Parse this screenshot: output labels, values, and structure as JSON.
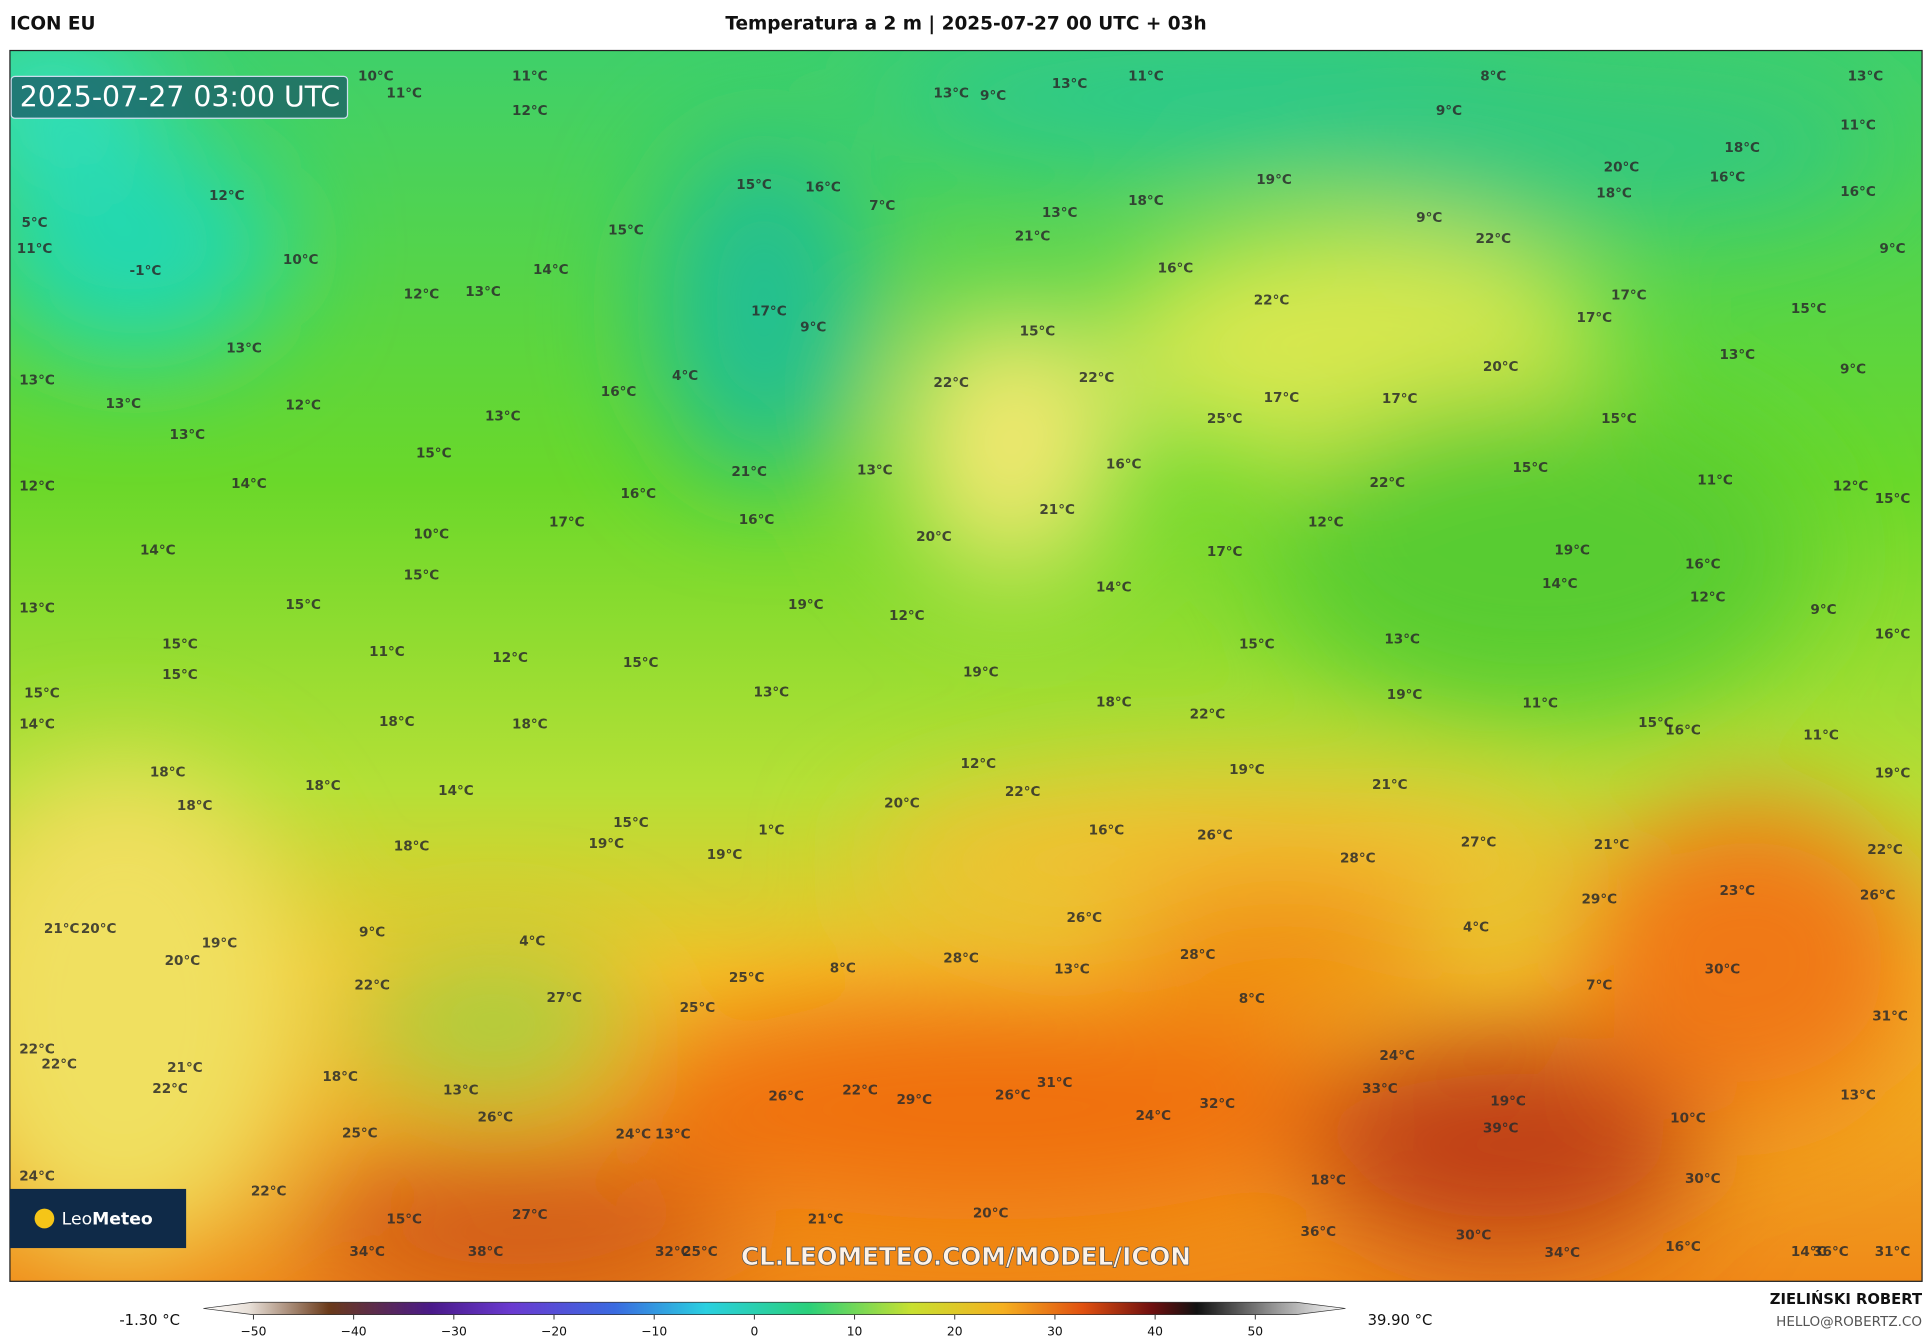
{
  "header": {
    "model": "ICON EU",
    "title": "Temperatura a 2 m | 2025-07-27 00 UTC + 03h"
  },
  "map": {
    "timestamp": "2025-07-27 03:00 UTC",
    "watermark": "CL.LEOMETEO.COM/MODEL/ICON",
    "logo": {
      "text1": "Leo",
      "text2": "Meteo"
    },
    "labels": [
      "10°C",
      "11°C",
      "11°C",
      "12°C",
      "13°C",
      "9°C",
      "13°C",
      "11°C",
      "8°C",
      "9°C",
      "13°C",
      "11°C",
      "12°C",
      "5°C",
      "11°C",
      "-1°C",
      "10°C",
      "12°C",
      "13°C",
      "14°C",
      "15°C",
      "15°C",
      "16°C",
      "7°C",
      "18°C",
      "13°C",
      "21°C",
      "19°C",
      "9°C",
      "20°C",
      "18°C",
      "18°C",
      "16°C",
      "16°C",
      "22°C",
      "9°C",
      "16°C",
      "22°C",
      "17°C",
      "17°C",
      "15°C",
      "13°C",
      "13°C",
      "13°C",
      "12°C",
      "13°C",
      "17°C",
      "9°C",
      "4°C",
      "16°C",
      "15°C",
      "22°C",
      "22°C",
      "20°C",
      "13°C",
      "9°C",
      "13°C",
      "25°C",
      "17°C",
      "17°C",
      "15°C",
      "15°C",
      "12°C",
      "14°C",
      "21°C",
      "13°C",
      "16°C",
      "22°C",
      "15°C",
      "11°C",
      "12°C",
      "15°C",
      "10°C",
      "17°C",
      "16°C",
      "16°C",
      "20°C",
      "21°C",
      "14°C",
      "17°C",
      "12°C",
      "19°C",
      "16°C",
      "15°C",
      "13°C",
      "15°C",
      "19°C",
      "12°C",
      "14°C",
      "14°C",
      "12°C",
      "9°C",
      "16°C",
      "15°C",
      "15°C",
      "11°C",
      "12°C",
      "15°C",
      "19°C",
      "15°C",
      "13°C",
      "19°C",
      "15°C",
      "14°C",
      "18°C",
      "18°C",
      "13°C",
      "18°C",
      "22°C",
      "11°C",
      "15°C",
      "16°C",
      "11°C",
      "18°C",
      "18°C",
      "18°C",
      "14°C",
      "12°C",
      "22°C",
      "19°C",
      "21°C",
      "19°C",
      "15°C",
      "19°C",
      "18°C",
      "20°C",
      "1°C",
      "19°C",
      "16°C",
      "26°C",
      "28°C",
      "27°C",
      "21°C",
      "22°C",
      "21°C",
      "20°C",
      "19°C",
      "20°C",
      "9°C",
      "4°C",
      "26°C",
      "4°C",
      "29°C",
      "23°C",
      "26°C",
      "28°C",
      "28°C",
      "8°C",
      "25°C",
      "13°C",
      "8°C",
      "7°C",
      "30°C",
      "22°C",
      "27°C",
      "25°C",
      "31°C",
      "22°C",
      "22°C",
      "21°C",
      "22°C",
      "18°C",
      "13°C",
      "24°C",
      "33°C",
      "26°C",
      "26°C",
      "22°C",
      "29°C",
      "26°C",
      "31°C",
      "32°C",
      "24°C",
      "39°C",
      "19°C",
      "13°C",
      "10°C",
      "25°C",
      "24°C",
      "13°C",
      "18°C",
      "30°C",
      "24°C",
      "22°C",
      "27°C",
      "15°C",
      "21°C",
      "20°C",
      "36°C",
      "30°C",
      "16°C",
      "34°C",
      "38°C",
      "32°C",
      "25°C",
      "34°C",
      "14°C",
      "36°C",
      "31°C"
    ]
  },
  "colorbar": {
    "min_label": "-1.30 °C",
    "max_label": "39.90 °C",
    "lim": [
      -55,
      59
    ],
    "ticks": [
      {
        "value": -50,
        "label": "−50"
      },
      {
        "value": -40,
        "label": "−40"
      },
      {
        "value": -30,
        "label": "−30"
      },
      {
        "value": -20,
        "label": "−20"
      },
      {
        "value": -10,
        "label": "−10"
      },
      0,
      10,
      20,
      30,
      40,
      50
    ]
  },
  "footer": {
    "author": "ZIELIŃSKI ROBERT",
    "email": "HELLO@ROBERTZ.CO"
  }
}
